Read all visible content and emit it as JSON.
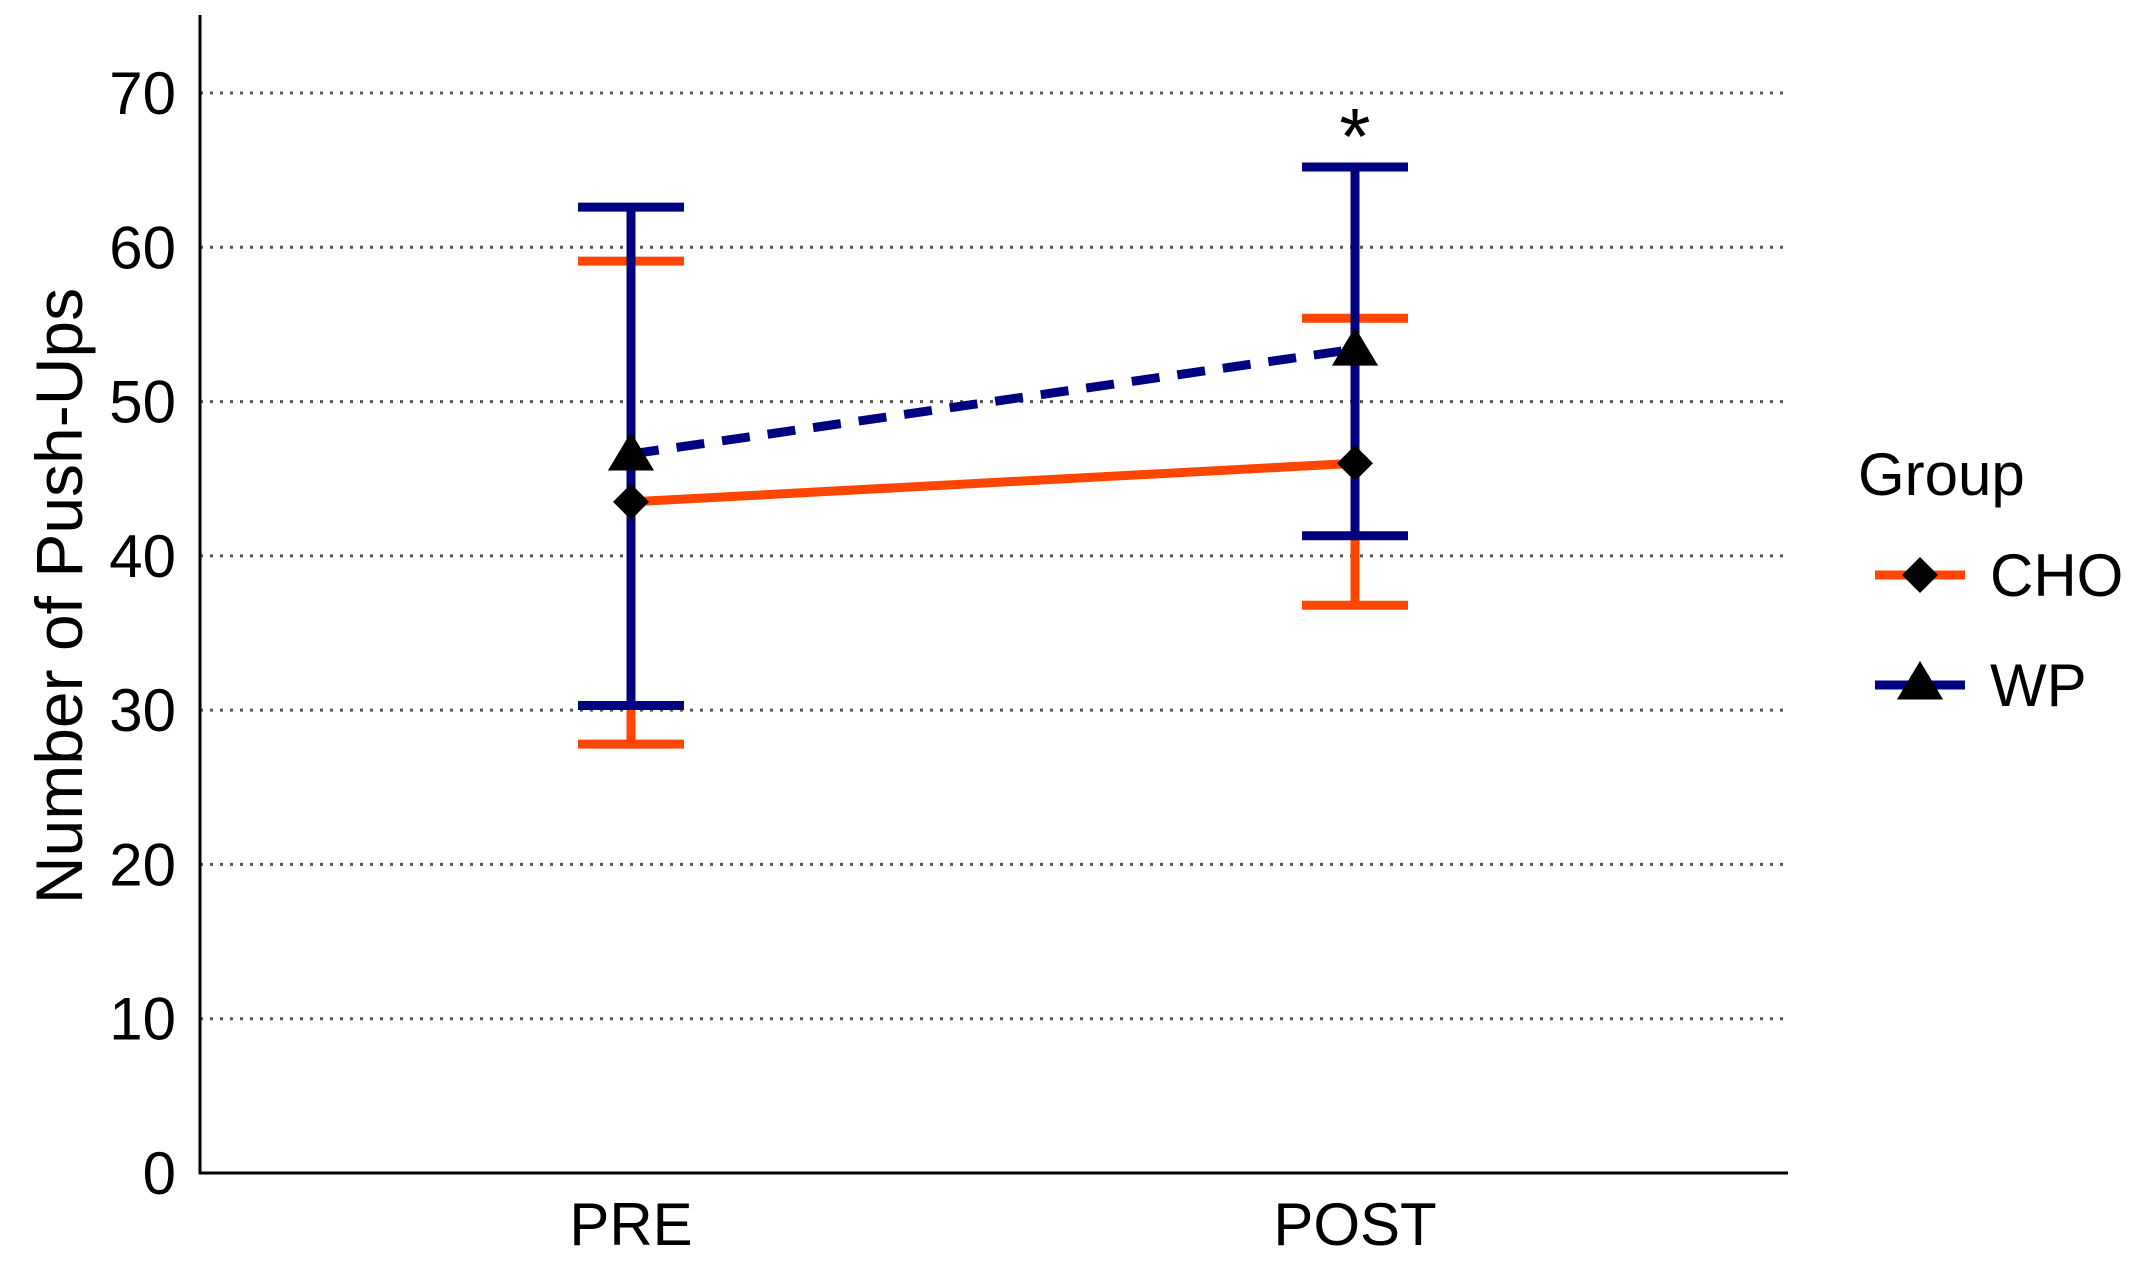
{
  "chart_data": {
    "type": "line",
    "title": "",
    "xlabel": "",
    "ylabel": "Number of Push-Ups",
    "categories": [
      "PRE",
      "POST"
    ],
    "ylim": [
      0,
      70
    ],
    "yticks": [
      0,
      10,
      20,
      30,
      40,
      50,
      60,
      70
    ],
    "grid": "horizontal-dotted",
    "legend": {
      "title": "Group",
      "placement": "right"
    },
    "series": [
      {
        "name": "CHO",
        "color": "#FF4500",
        "line_style": "solid",
        "marker": "diamond",
        "values": [
          43.5,
          46.0
        ],
        "error_low": [
          27.8,
          36.8
        ],
        "error_high": [
          59.1,
          55.4
        ]
      },
      {
        "name": "WP",
        "color": "#000080",
        "line_style": "dashed",
        "marker": "triangle",
        "values": [
          46.6,
          53.4
        ],
        "error_low": [
          30.3,
          41.3
        ],
        "error_high": [
          62.6,
          65.2
        ]
      }
    ],
    "annotations": [
      {
        "text": "*",
        "category": "POST",
        "y": 68.5
      }
    ]
  }
}
